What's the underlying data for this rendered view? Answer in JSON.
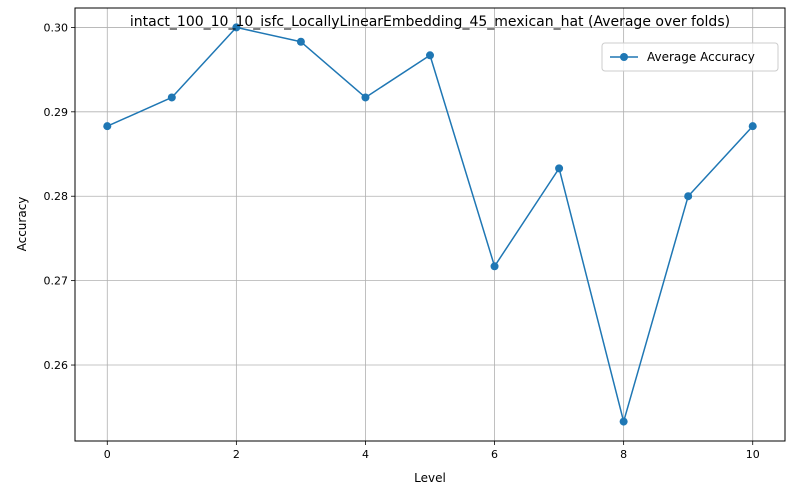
{
  "chart_data": {
    "type": "line",
    "title": "intact_100_10_10_isfc_LocallyLinearEmbedding_45_mexican_hat (Average over folds)",
    "xlabel": "Level",
    "ylabel": "Accuracy",
    "x": [
      0,
      1,
      2,
      3,
      4,
      5,
      6,
      7,
      8,
      9,
      10
    ],
    "series": [
      {
        "name": "Average Accuracy",
        "color": "#1f77b4",
        "marker": "circle",
        "values": [
          0.2883,
          0.2917,
          0.3,
          0.2983,
          0.2917,
          0.2967,
          0.2717,
          0.2833,
          0.2533,
          0.28,
          0.2883
        ]
      }
    ],
    "xlim": [
      -0.5,
      10.5
    ],
    "ylim": [
      0.251,
      0.3023
    ],
    "xticks": [
      0,
      2,
      4,
      6,
      8,
      10
    ],
    "xtick_labels": [
      "0",
      "2",
      "4",
      "6",
      "8",
      "10"
    ],
    "yticks": [
      0.26,
      0.27,
      0.28,
      0.29,
      0.3
    ],
    "ytick_labels": [
      "0.26",
      "0.27",
      "0.28",
      "0.29",
      "0.30"
    ],
    "grid": true,
    "legend_position": "top-right"
  }
}
